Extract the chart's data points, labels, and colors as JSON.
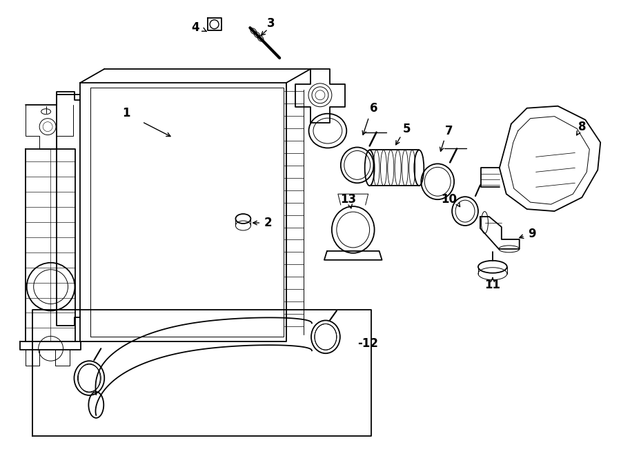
{
  "bg_color": "#ffffff",
  "line_color": "#000000",
  "fig_width": 9.0,
  "fig_height": 6.61,
  "dpi": 100,
  "lw_main": 1.3,
  "lw_thin": 0.7,
  "lw_thick": 2.0,
  "label_fontsize": 12
}
